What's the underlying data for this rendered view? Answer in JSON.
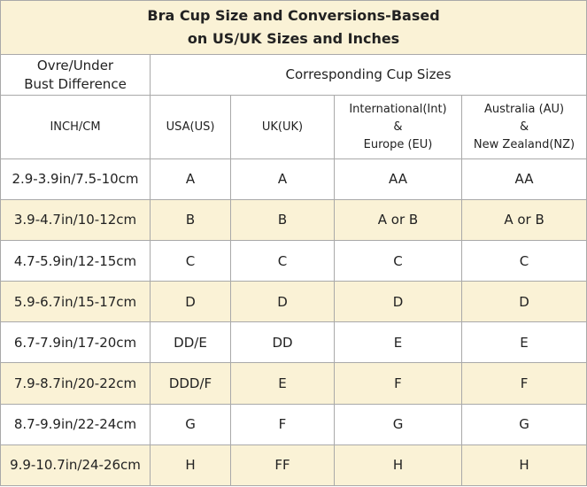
{
  "title": {
    "line1": "Bra Cup Size and Conversions-Based",
    "line2": "on US/UK Sizes and Inches"
  },
  "header": {
    "difference_line1": "Ovre/Under",
    "difference_line2": "Bust Difference",
    "corresponding": "Corresponding Cup Sizes",
    "inch_cm": "INCH/CM",
    "usa": "USA(US)",
    "uk": "UK(UK)",
    "intl_line1": "International(Int)",
    "intl_line2": "&",
    "intl_line3": "Europe (EU)",
    "au_line1": "Australia (AU)",
    "au_line2": "&",
    "au_line3": "New Zealand(NZ)"
  },
  "rows": [
    {
      "inch_cm": "2.9-3.9in/7.5-10cm",
      "us": "A",
      "uk": "A",
      "eu": "AA",
      "au": "AA"
    },
    {
      "inch_cm": "3.9-4.7in/10-12cm",
      "us": "B",
      "uk": "B",
      "eu": "A or B",
      "au": "A or B"
    },
    {
      "inch_cm": "4.7-5.9in/12-15cm",
      "us": "C",
      "uk": "C",
      "eu": "C",
      "au": "C"
    },
    {
      "inch_cm": "5.9-6.7in/15-17cm",
      "us": "D",
      "uk": "D",
      "eu": "D",
      "au": "D"
    },
    {
      "inch_cm": "6.7-7.9in/17-20cm",
      "us": "DD/E",
      "uk": "DD",
      "eu": "E",
      "au": "E"
    },
    {
      "inch_cm": "7.9-8.7in/20-22cm",
      "us": "DDD/F",
      "uk": "E",
      "eu": "F",
      "au": "F"
    },
    {
      "inch_cm": "8.7-9.9in/22-24cm",
      "us": "G",
      "uk": "F",
      "eu": "G",
      "au": "G"
    },
    {
      "inch_cm": "9.9-10.7in/24-26cm",
      "us": "H",
      "uk": "FF",
      "eu": "H",
      "au": "H"
    }
  ],
  "colors": {
    "shade": "#faf2d6",
    "border": "#a9a9a9",
    "text": "#222222"
  }
}
